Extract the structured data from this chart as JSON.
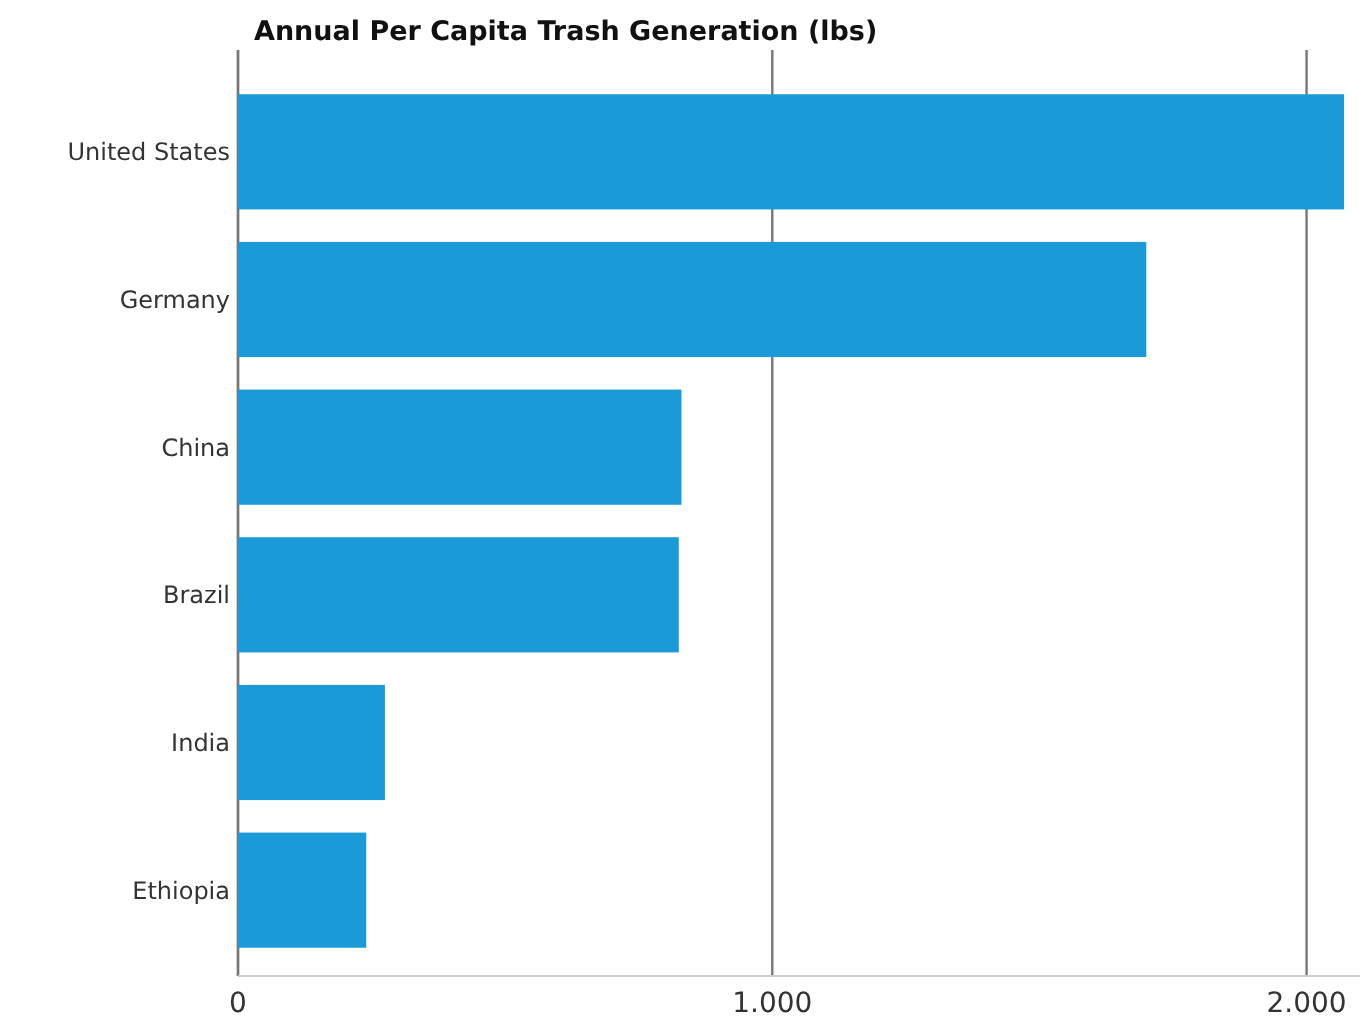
{
  "chart_data": {
    "type": "bar",
    "orientation": "horizontal",
    "title": "Annual Per Capita Trash Generation (lbs)",
    "categories": [
      "United States",
      "Germany",
      "China",
      "Brazil",
      "India",
      "Ethiopia"
    ],
    "values": [
      2070,
      1700,
      830,
      825,
      275,
      240
    ],
    "color": "#1a9ad6",
    "xlim": [
      0,
      2100
    ],
    "xticks": [
      {
        "value": 0,
        "label": "0"
      },
      {
        "value": 1000,
        "label": "1.000"
      },
      {
        "value": 2000,
        "label": "2.000"
      }
    ],
    "grid": "x"
  }
}
